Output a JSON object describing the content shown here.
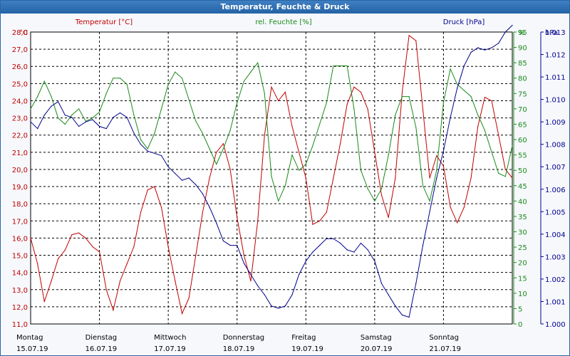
{
  "window": {
    "title": "Temperatur, Feuchte & Druck"
  },
  "chart_data": {
    "type": "line",
    "title": "Temperatur, Feuchte & Druck",
    "grid": true,
    "x_days": [
      {
        "day": "Montag",
        "date": "15.07.19"
      },
      {
        "day": "Dienstag",
        "date": "16.07.19"
      },
      {
        "day": "Mittwoch",
        "date": "17.07.19"
      },
      {
        "day": "Donnerstag",
        "date": "18.07.19"
      },
      {
        "day": "Freitag",
        "date": "19.07.19"
      },
      {
        "day": "Samstag",
        "date": "20.07.19"
      },
      {
        "day": "Sonntag",
        "date": "21.07.19"
      }
    ],
    "xlim": [
      0,
      7
    ],
    "axes": {
      "temperature": {
        "label": "Temperatur [°C]",
        "unit": "°C",
        "ylim": [
          11.0,
          28.0
        ],
        "ticks": [
          "28,0",
          "27,0",
          "26,0",
          "25,0",
          "24,0",
          "23,0",
          "22,0",
          "21,0",
          "20,0",
          "19,0",
          "18,0",
          "17,0",
          "16,0",
          "15,0",
          "14,0",
          "13,0",
          "12,0",
          "11,0"
        ],
        "color": "#c00000"
      },
      "humidity": {
        "label": "rel. Feuchte [%]",
        "unit": "%",
        "ylim": [
          0,
          95
        ],
        "ticks": [
          "95",
          "90",
          "85",
          "80",
          "75",
          "70",
          "65",
          "60",
          "55",
          "50",
          "45",
          "40",
          "35",
          "30",
          "25",
          "20",
          "15",
          "10",
          "5",
          "0"
        ],
        "color": "#1a8a1a"
      },
      "pressure": {
        "label": "Druck [hPa]",
        "unit": "hPa",
        "ylim": [
          1.0,
          1.013
        ],
        "ticks": [
          "1.013",
          "1.012",
          "1.011",
          "1.010",
          "1.009",
          "1.008",
          "1.007",
          "1.006",
          "1.005",
          "1.004",
          "1.003",
          "1.002",
          "1.001",
          "1.000"
        ],
        "color": "#00008b"
      }
    },
    "series": [
      {
        "name": "Temperatur [°C]",
        "axis": "temperature",
        "color": "#c00000",
        "x": [
          0,
          0.1,
          0.2,
          0.3,
          0.4,
          0.5,
          0.6,
          0.7,
          0.8,
          0.9,
          1.0,
          1.1,
          1.2,
          1.3,
          1.4,
          1.5,
          1.6,
          1.7,
          1.8,
          1.9,
          2.0,
          2.1,
          2.2,
          2.3,
          2.4,
          2.5,
          2.6,
          2.7,
          2.8,
          2.9,
          3.0,
          3.1,
          3.2,
          3.3,
          3.4,
          3.5,
          3.6,
          3.7,
          3.8,
          3.9,
          4.0,
          4.1,
          4.2,
          4.3,
          4.4,
          4.5,
          4.6,
          4.7,
          4.8,
          4.9,
          5.0,
          5.1,
          5.2,
          5.3,
          5.4,
          5.5,
          5.6,
          5.7,
          5.8,
          5.9,
          6.0,
          6.1,
          6.2,
          6.3,
          6.4,
          6.5,
          6.6,
          6.7,
          6.8,
          6.9,
          7.0
        ],
        "values": [
          16.0,
          14.5,
          12.3,
          13.5,
          14.8,
          15.3,
          16.2,
          16.3,
          16.0,
          15.5,
          15.2,
          13.0,
          11.8,
          13.5,
          14.5,
          15.5,
          17.5,
          18.8,
          19.0,
          17.8,
          15.5,
          13.5,
          11.6,
          12.5,
          15.0,
          17.5,
          19.5,
          21.0,
          21.5,
          20.0,
          17.2,
          15.0,
          13.5,
          17.0,
          22.0,
          24.8,
          24.0,
          24.5,
          22.5,
          21.0,
          19.5,
          16.8,
          17.0,
          17.5,
          19.5,
          21.5,
          23.8,
          24.8,
          24.5,
          23.5,
          21.0,
          18.5,
          17.2,
          19.5,
          24.5,
          27.8,
          27.5,
          23.5,
          19.5,
          20.8,
          20.2,
          17.8,
          16.9,
          17.8,
          19.5,
          22.5,
          24.2,
          24.0,
          22.0,
          20.0,
          19.5
        ]
      },
      {
        "name": "rel. Feuchte [%]",
        "axis": "humidity",
        "color": "#1a8a1a",
        "x": [
          0,
          0.1,
          0.2,
          0.3,
          0.4,
          0.5,
          0.6,
          0.7,
          0.8,
          0.9,
          1.0,
          1.1,
          1.2,
          1.3,
          1.4,
          1.5,
          1.6,
          1.7,
          1.8,
          1.9,
          2.0,
          2.1,
          2.2,
          2.3,
          2.4,
          2.5,
          2.6,
          2.7,
          2.8,
          2.9,
          3.0,
          3.1,
          3.2,
          3.3,
          3.4,
          3.5,
          3.6,
          3.7,
          3.8,
          3.9,
          4.0,
          4.1,
          4.2,
          4.3,
          4.4,
          4.5,
          4.6,
          4.7,
          4.8,
          4.9,
          5.0,
          5.1,
          5.2,
          5.3,
          5.4,
          5.5,
          5.6,
          5.7,
          5.8,
          5.9,
          6.0,
          6.1,
          6.2,
          6.3,
          6.4,
          6.5,
          6.6,
          6.7,
          6.8,
          6.9,
          7.0
        ],
        "values": [
          70,
          74,
          79,
          74,
          67,
          65,
          68,
          70,
          66,
          67,
          69,
          75,
          80,
          80,
          78,
          68,
          60,
          57,
          62,
          70,
          78,
          82,
          80,
          73,
          66,
          62,
          57,
          52,
          57,
          63,
          72,
          79,
          82,
          85,
          75,
          48,
          40,
          45,
          55,
          50,
          52,
          58,
          65,
          72,
          84,
          84,
          84,
          70,
          50,
          44,
          40,
          44,
          55,
          68,
          74,
          74,
          64,
          45,
          40,
          50,
          72,
          83,
          78,
          76,
          74,
          68,
          63,
          56,
          49,
          48,
          58
        ]
      },
      {
        "name": "Druck [hPa]",
        "axis": "pressure",
        "color": "#00008b",
        "x": [
          0,
          0.1,
          0.2,
          0.3,
          0.4,
          0.5,
          0.6,
          0.7,
          0.8,
          0.9,
          1.0,
          1.1,
          1.2,
          1.3,
          1.4,
          1.5,
          1.6,
          1.7,
          1.8,
          1.9,
          2.0,
          2.1,
          2.2,
          2.3,
          2.4,
          2.5,
          2.6,
          2.7,
          2.8,
          2.9,
          3.0,
          3.1,
          3.2,
          3.3,
          3.4,
          3.5,
          3.6,
          3.7,
          3.8,
          3.9,
          4.0,
          4.1,
          4.2,
          4.3,
          4.4,
          4.5,
          4.6,
          4.7,
          4.8,
          4.9,
          5.0,
          5.1,
          5.2,
          5.3,
          5.4,
          5.5,
          5.6,
          5.7,
          5.8,
          5.9,
          6.0,
          6.1,
          6.2,
          6.3,
          6.4,
          6.5,
          6.6,
          6.7,
          6.8,
          6.9,
          7.0
        ],
        "values": [
          1.009,
          1.0087,
          1.0093,
          1.0097,
          1.0099,
          1.0093,
          1.0092,
          1.0088,
          1.009,
          1.0091,
          1.0088,
          1.0087,
          1.0092,
          1.0094,
          1.0092,
          1.0085,
          1.008,
          1.0077,
          1.0076,
          1.0075,
          1.007,
          1.0067,
          1.0064,
          1.0065,
          1.0062,
          1.0058,
          1.0052,
          1.0045,
          1.0037,
          1.0035,
          1.0035,
          1.0027,
          1.0022,
          1.0017,
          1.0013,
          1.0008,
          1.0007,
          1.0008,
          1.0013,
          1.0022,
          1.0028,
          1.0032,
          1.0035,
          1.0038,
          1.0038,
          1.0036,
          1.0033,
          1.0032,
          1.0036,
          1.0033,
          1.0028,
          1.0018,
          1.0013,
          1.0008,
          1.0004,
          1.0003,
          1.0018,
          1.0035,
          1.005,
          1.0065,
          1.0077,
          1.0092,
          1.0105,
          1.0115,
          1.0121,
          1.0123,
          1.0122,
          1.0123,
          1.0125,
          1.013,
          1.0133
        ]
      }
    ]
  }
}
